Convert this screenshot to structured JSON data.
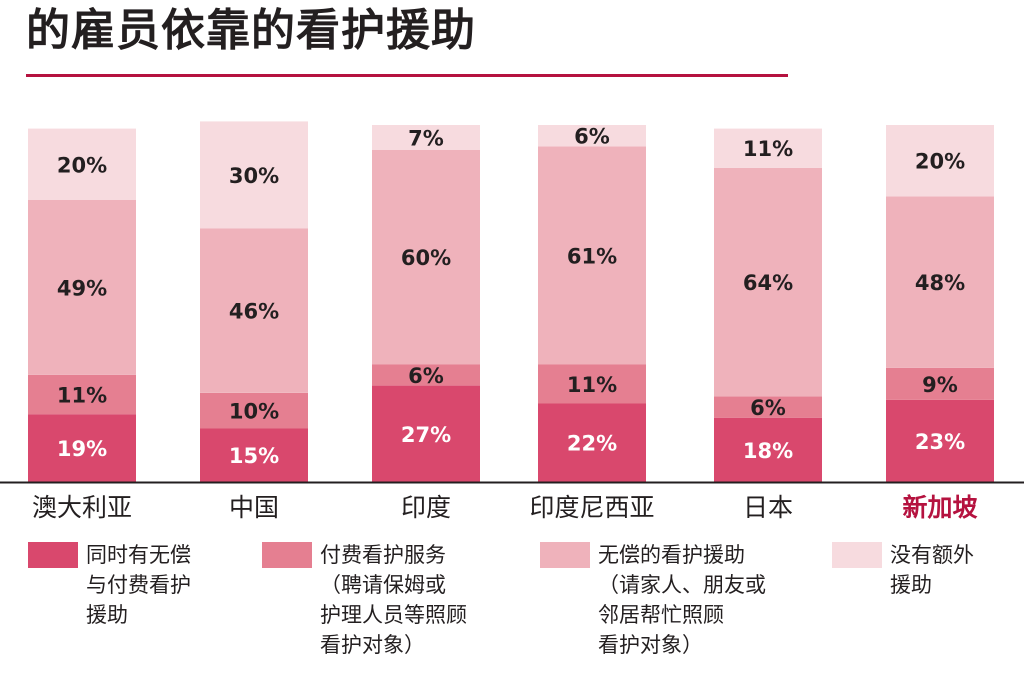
{
  "title": "的雇员依靠的看护援助",
  "colors": {
    "accent": "#b5123f",
    "paid_and_unpaid": "#d9486d",
    "paid": "#e57f91",
    "unpaid": "#efb2bb",
    "none": "#f7dbdf"
  },
  "legend": [
    {
      "name": "同时有无偿\n与付费看护\n援助",
      "sub": "",
      "color": "#d9486d"
    },
    {
      "name": "付费看护服务",
      "sub": "（聘请保姆或\n护理人员等照顾\n看护对象）",
      "color": "#e57f91"
    },
    {
      "name": "无偿的看护援助",
      "sub": "（请家人、朋友或\n邻居帮忙照顾\n看护对象）",
      "color": "#efb2bb"
    },
    {
      "name": "没有额外\n援助",
      "sub": "",
      "color": "#f7dbdf"
    }
  ],
  "chart_data": {
    "type": "bar",
    "stacked": true,
    "categories": [
      "澳大利亚",
      "中国",
      "印度",
      "印度尼西亚",
      "日本",
      "新加坡"
    ],
    "highlight_category": "新加坡",
    "ylim": [
      0,
      100
    ],
    "series": [
      {
        "name": "同时有无偿与付费看护援助",
        "values": [
          19,
          15,
          27,
          22,
          18,
          23
        ]
      },
      {
        "name": "付费看护服务",
        "values": [
          11,
          10,
          6,
          11,
          6,
          9
        ]
      },
      {
        "name": "无偿的看护援助",
        "values": [
          49,
          46,
          60,
          61,
          64,
          48
        ]
      },
      {
        "name": "没有额外援助",
        "values": [
          20,
          30,
          7,
          6,
          11,
          20
        ]
      }
    ]
  }
}
